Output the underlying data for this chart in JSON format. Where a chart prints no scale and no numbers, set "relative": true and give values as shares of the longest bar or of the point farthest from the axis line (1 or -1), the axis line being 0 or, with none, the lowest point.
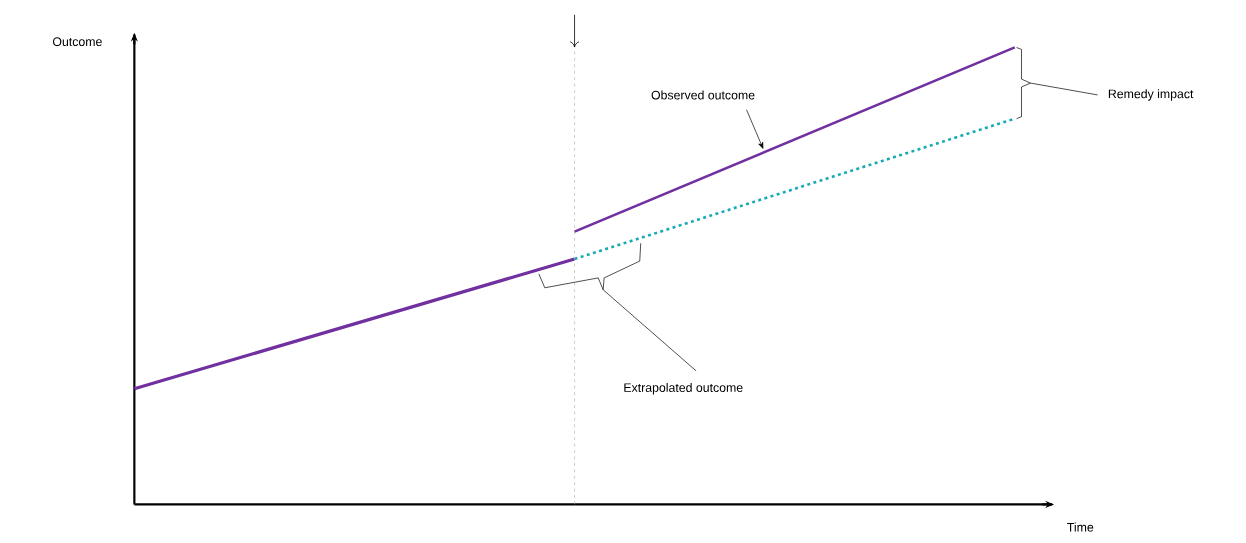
{
  "chart_data": {
    "type": "line",
    "relative": true,
    "xlabel": "Time",
    "ylabel": "Outcome",
    "categories": [
      null,
      null,
      null
    ],
    "series": [
      {
        "color": "#7030a0",
        "values": [
          0.253,
          0.537,
          null
        ]
      },
      {
        "color": "#7030a0",
        "values": [
          null,
          0.597,
          1
        ]
      },
      {
        "color": "#17a9b5",
        "values": [
          null,
          0.537,
          0.844
        ],
        "line_style": "dotted"
      }
    ],
    "annotations": [
      "Observed outcome",
      "Remedy impact",
      "Extrapolated outcome"
    ],
    "marker": "none"
  }
}
